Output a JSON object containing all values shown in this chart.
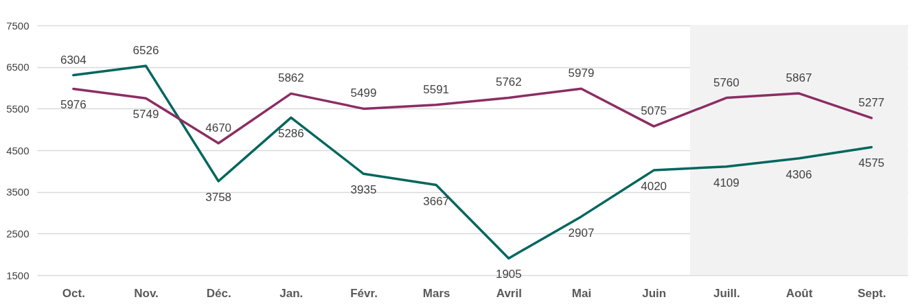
{
  "chart_data": {
    "type": "line",
    "categories": [
      "Oct.",
      "Nov.",
      "Déc.",
      "Jan.",
      "Févr.",
      "Mars",
      "Avril",
      "Mai",
      "Juin",
      "Juill.",
      "Août",
      "Sept."
    ],
    "series": [
      {
        "color": "#00665e",
        "values": [
          6304,
          6526,
          3758,
          5286,
          3935,
          3667,
          1905,
          2907,
          4020,
          4109,
          4306,
          4575
        ]
      },
      {
        "color": "#8c2d63",
        "values": [
          5976,
          5749,
          4670,
          5862,
          5499,
          5591,
          5762,
          5979,
          5075,
          5760,
          5867,
          5277
        ]
      }
    ],
    "ylim": [
      1500,
      7500
    ],
    "yticks": [
      1500,
      2500,
      3500,
      4500,
      5500,
      6500,
      7500
    ],
    "grid": "y",
    "data_labels": true,
    "bands": [
      {
        "axis": "x",
        "from": "Juill.",
        "to": "Sept.",
        "color": "#f2f2f2"
      }
    ]
  }
}
